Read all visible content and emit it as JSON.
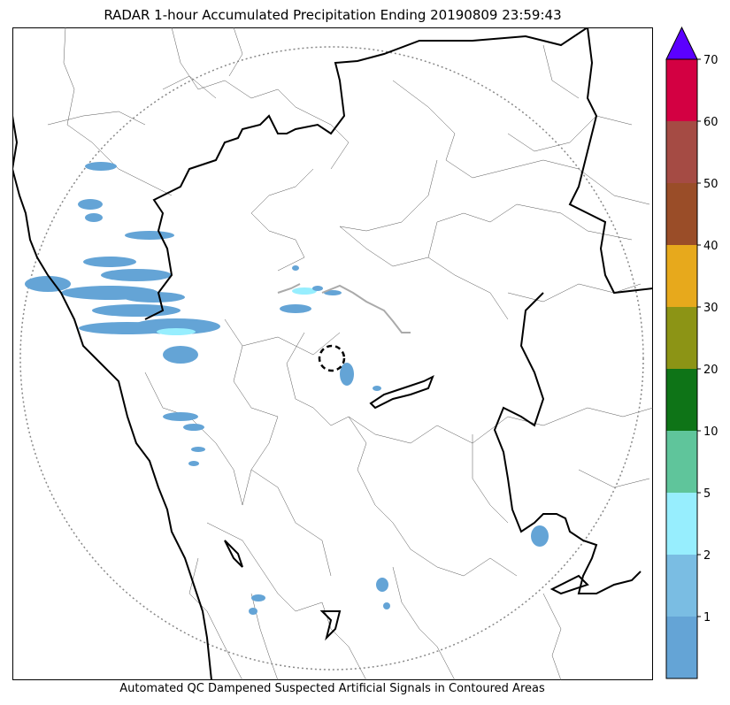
{
  "title": "RADAR 1-hour Accumulated Precipitation Ending 20190809 23:59:43",
  "footer": "Automated QC Dampened Suspected Artificial Signals in Contoured Areas",
  "colorbar": {
    "extend_color": "#5b00ff",
    "levels": [
      {
        "label": "",
        "color": "#64a4d6"
      },
      {
        "label": "1",
        "color": "#7abde3"
      },
      {
        "label": "2",
        "color": "#97eefe"
      },
      {
        "label": "5",
        "color": "#5fc59b"
      },
      {
        "label": "10",
        "color": "#0e7417"
      },
      {
        "label": "20",
        "color": "#8c9415"
      },
      {
        "label": "30",
        "color": "#e7a91c"
      },
      {
        "label": "40",
        "color": "#9a4d28"
      },
      {
        "label": "50",
        "color": "#a54b44"
      },
      {
        "label": "60",
        "color": "#d30042"
      },
      {
        "label": "70",
        "color": ""
      }
    ]
  }
}
